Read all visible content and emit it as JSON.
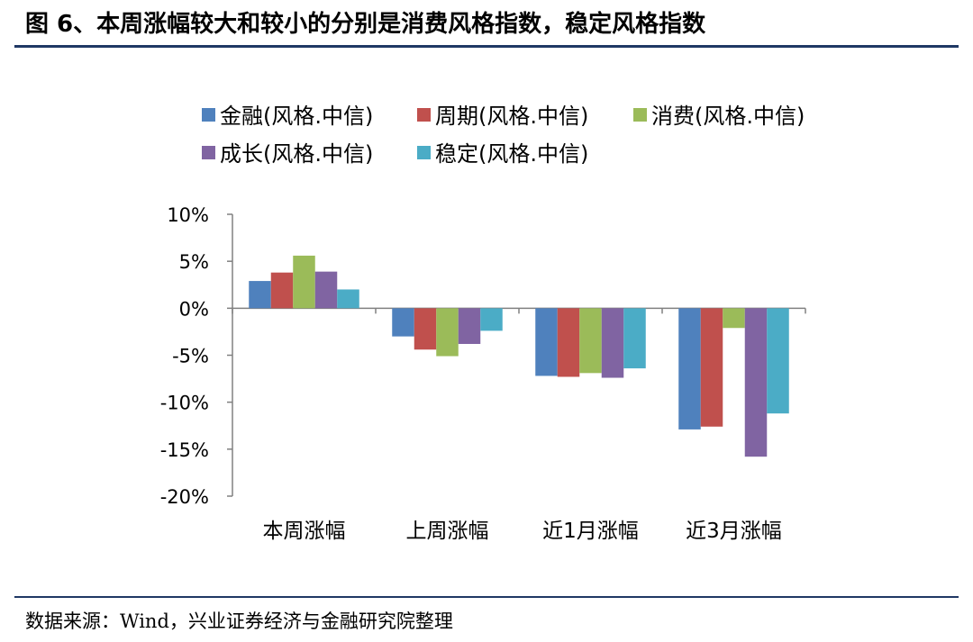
{
  "title": "图 6、本周涨幅较大和较小的分别是消费风格指数，稳定风格指数",
  "source": "数据来源：Wind，兴业证券经济与金融研究院整理",
  "chart_data": {
    "type": "bar",
    "categories": [
      "本周涨幅",
      "上周涨幅",
      "近1月涨幅",
      "近3月涨幅"
    ],
    "series": [
      {
        "name": "金融(风格.中信)",
        "color": "#4f81bd",
        "values": [
          2.9,
          -3.0,
          -7.2,
          -12.9
        ]
      },
      {
        "name": "周期(风格.中信)",
        "color": "#c0504d",
        "values": [
          3.8,
          -4.4,
          -7.3,
          -12.6
        ]
      },
      {
        "name": "消费(风格.中信)",
        "color": "#9bbb59",
        "values": [
          5.6,
          -5.1,
          -6.9,
          -2.1
        ]
      },
      {
        "name": "成长(风格.中信)",
        "color": "#8064a2",
        "values": [
          3.9,
          -3.8,
          -7.4,
          -15.8
        ]
      },
      {
        "name": "稳定(风格.中信)",
        "color": "#4bacc6",
        "values": [
          2.0,
          -2.4,
          -6.4,
          -11.2
        ]
      }
    ],
    "yticks": [
      "10%",
      "5%",
      "0%",
      "-5%",
      "-10%",
      "-15%",
      "-20%"
    ],
    "ylim": [
      -20,
      10
    ],
    "grid": false,
    "legend_position": "top"
  }
}
